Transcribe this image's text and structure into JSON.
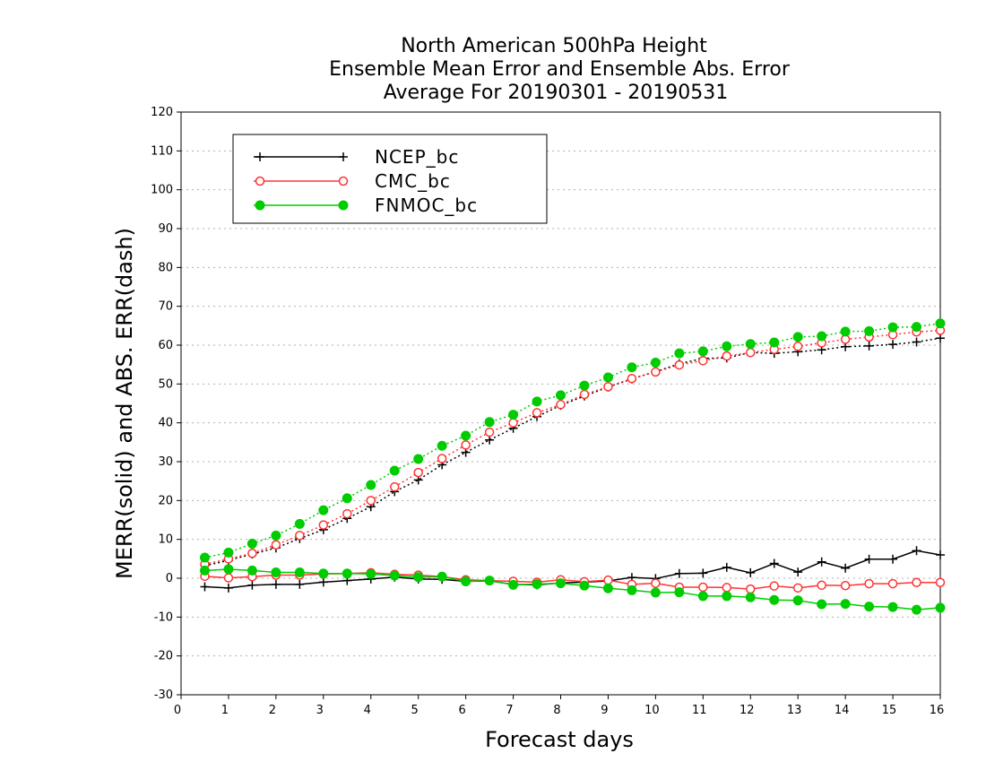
{
  "chart_data": {
    "type": "line",
    "title": [
      "North American 500hPa Height",
      "Ensemble Mean Error and Ensemble Abs. Error",
      "Average For 20190301 - 20190531"
    ],
    "xlabel": "Forecast days",
    "ylabel": "MERR(solid) and ABS. ERR(dash)",
    "xlim": [
      0,
      16
    ],
    "ylim": [
      -30,
      120
    ],
    "xticks": [
      0,
      1,
      2,
      3,
      4,
      5,
      6,
      7,
      8,
      9,
      10,
      11,
      12,
      13,
      14,
      15,
      16
    ],
    "yticks": [
      -30,
      -20,
      -10,
      0,
      10,
      20,
      30,
      40,
      50,
      60,
      70,
      80,
      90,
      100,
      110,
      120
    ],
    "grid": "horizontal dotted",
    "legend_position": "top-left",
    "x": [
      0.5,
      1,
      1.5,
      2,
      2.5,
      3,
      3.5,
      4,
      4.5,
      5,
      5.5,
      6,
      6.5,
      7,
      7.5,
      8,
      8.5,
      9,
      9.5,
      10,
      10.5,
      11,
      11.5,
      12,
      12.5,
      13,
      13.5,
      14,
      14.5,
      15,
      15.5,
      16
    ],
    "series": [
      {
        "name": "NCEP_bc",
        "color": "#000000",
        "marker": "plus",
        "merr": [
          -2.2,
          -2.5,
          -1.8,
          -1.6,
          -1.6,
          -1.0,
          -0.6,
          -0.2,
          0.3,
          -0.2,
          -0.3,
          -0.8,
          -0.7,
          -1.6,
          -1.7,
          -1.2,
          -1.0,
          -0.7,
          0.2,
          -0.1,
          1.2,
          1.3,
          2.8,
          1.4,
          3.8,
          1.6,
          4.2,
          2.6,
          4.9,
          4.9,
          7.1,
          6.0
        ],
        "abs_err": [
          3.2,
          4.6,
          6.2,
          7.8,
          10.2,
          12.5,
          15.4,
          18.4,
          22.3,
          25.3,
          29.2,
          32.4,
          35.6,
          38.6,
          41.6,
          44.5,
          46.9,
          49.2,
          51.3,
          53.2,
          55.2,
          56.6,
          56.7,
          58.1,
          57.9,
          58.3,
          58.8,
          59.6,
          59.8,
          60.2,
          60.8,
          61.8
        ]
      },
      {
        "name": "CMC_bc",
        "color": "#ff3333",
        "marker": "open-circle",
        "merr": [
          0.5,
          0.1,
          0.4,
          0.8,
          0.8,
          1.1,
          1.2,
          1.4,
          1.0,
          0.8,
          0.4,
          -0.4,
          -0.6,
          -0.8,
          -1.0,
          -0.4,
          -0.9,
          -0.5,
          -1.6,
          -1.3,
          -2.3,
          -2.3,
          -2.4,
          -2.8,
          -2.0,
          -2.5,
          -1.8,
          -1.9,
          -1.4,
          -1.4,
          -1.1,
          -1.1
        ],
        "abs_err": [
          3.6,
          5.0,
          6.4,
          8.6,
          11.0,
          13.7,
          16.6,
          20.0,
          23.5,
          27.2,
          30.8,
          34.3,
          37.6,
          40.0,
          42.6,
          44.7,
          47.3,
          49.3,
          51.4,
          53.1,
          54.9,
          56.0,
          57.2,
          58.1,
          58.9,
          59.7,
          60.6,
          61.5,
          62.1,
          62.7,
          63.4,
          63.8
        ]
      },
      {
        "name": "FNMOC_bc",
        "color": "#00cc00",
        "marker": "filled-circle",
        "merr": [
          2.0,
          2.3,
          2.0,
          1.5,
          1.5,
          1.2,
          1.2,
          1.1,
          0.7,
          0.3,
          0.4,
          -0.8,
          -0.6,
          -1.7,
          -1.5,
          -1.3,
          -1.9,
          -2.6,
          -3.1,
          -3.7,
          -3.6,
          -4.6,
          -4.6,
          -4.9,
          -5.6,
          -5.7,
          -6.7,
          -6.6,
          -7.3,
          -7.4,
          -8.1,
          -7.6
        ],
        "abs_err": [
          5.3,
          6.6,
          8.9,
          11.0,
          14.0,
          17.5,
          20.6,
          24.0,
          27.7,
          30.7,
          34.1,
          36.7,
          40.2,
          42.1,
          45.5,
          47.1,
          49.6,
          51.7,
          54.3,
          55.5,
          57.9,
          58.4,
          59.7,
          60.3,
          60.7,
          62.1,
          62.3,
          63.5,
          63.6,
          64.6,
          64.7,
          65.6
        ]
      }
    ]
  }
}
